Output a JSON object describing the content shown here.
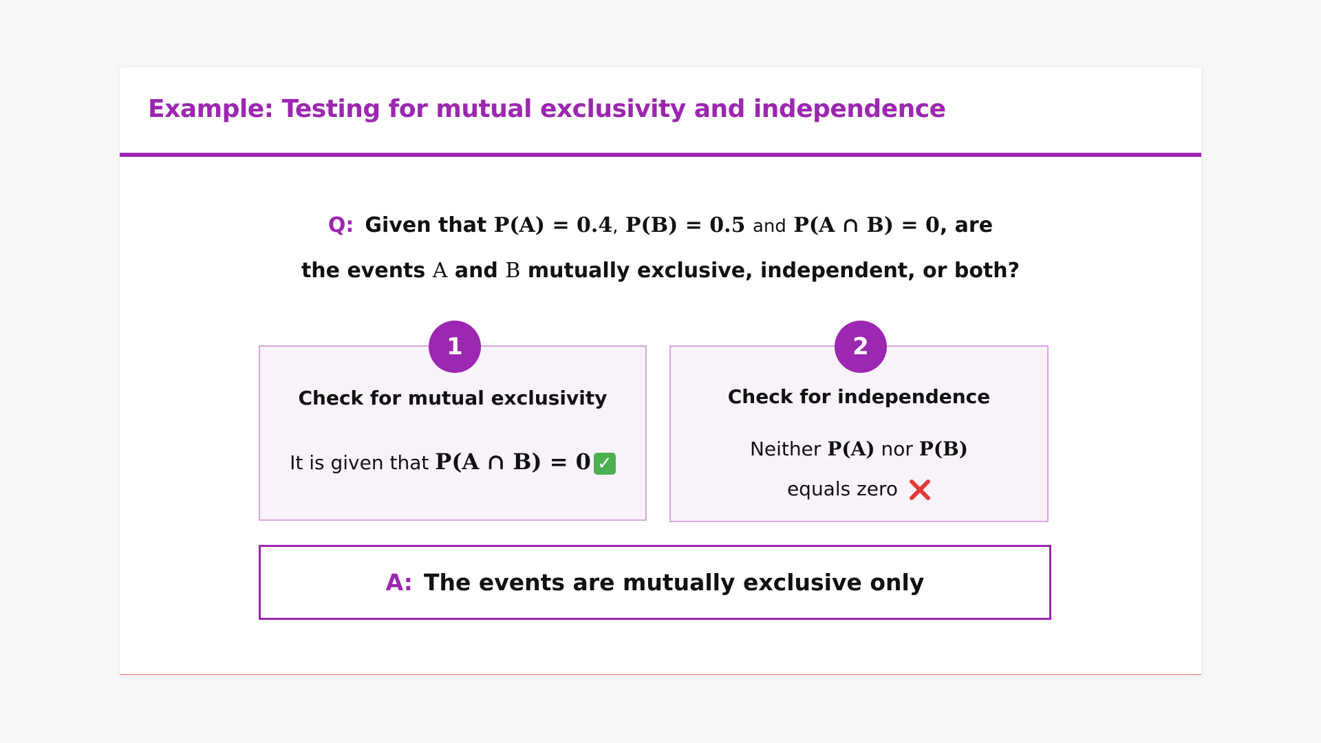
{
  "header": {
    "title": "Example: Testing for mutual exclusivity and independence"
  },
  "question": {
    "label": "Q:",
    "line1": [
      "Given that",
      "P(A) = 0.4",
      ",",
      "P(B) = 0.5",
      "and",
      "P(A ∩ B) = 0",
      ", are"
    ],
    "line2": [
      "the events",
      "A",
      "and",
      "B",
      "mutually exclusive, independent, or both?"
    ]
  },
  "steps": [
    {
      "number": "1",
      "heading": "Check for mutual exclusivity",
      "lines": [
        [
          "It is given that",
          "P(A ∩ B) = 0"
        ]
      ]
    },
    {
      "number": "2",
      "heading": "Check for independence",
      "lines": [
        [
          "Neither",
          "P(A)",
          "nor",
          "P(B)"
        ],
        [
          "equals zero"
        ]
      ]
    }
  ],
  "answer": {
    "label": "A:",
    "text": "The events are mutually exclusive only"
  }
}
